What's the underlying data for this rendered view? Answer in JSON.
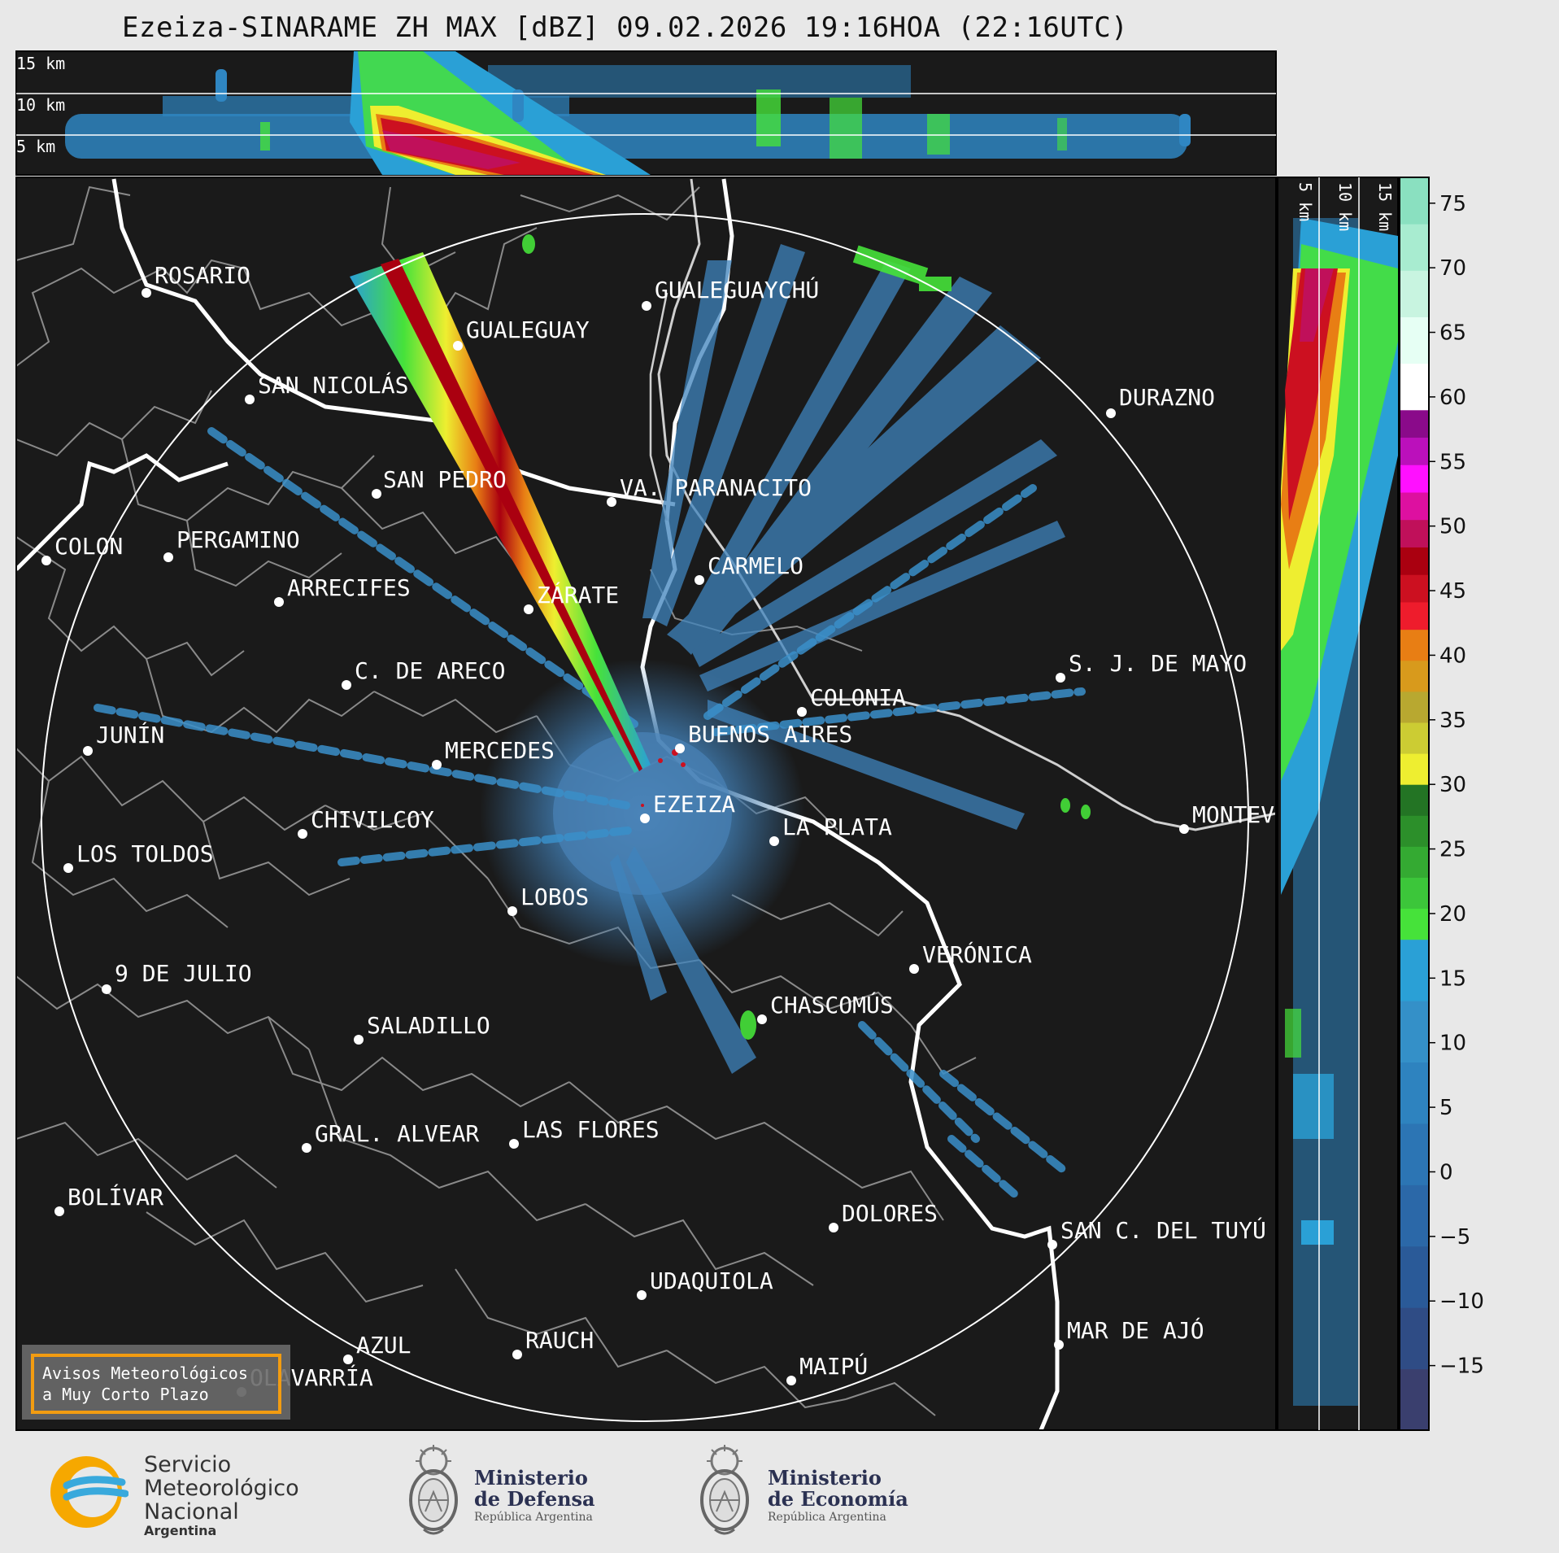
{
  "title": "Ezeiza-SINARAME ZH MAX [dBZ] 09.02.2026 19:16HOA (22:16UTC)",
  "top_panel": {
    "labels": [
      "15 km",
      "10 km",
      "5 km"
    ]
  },
  "side_panel": {
    "labels": [
      "5 km",
      "10 km",
      "15 km"
    ]
  },
  "colorbar": {
    "ticks": [
      "75",
      "70",
      "65",
      "60",
      "55",
      "50",
      "45",
      "40",
      "35",
      "30",
      "25",
      "20",
      "15",
      "10",
      "5",
      "0",
      "−5",
      "−10",
      "−15"
    ],
    "range": [
      -20,
      77
    ],
    "unit": "dBZ",
    "bands": [
      {
        "from": -20,
        "to": 18,
        "colors": [
          "#3a3f6e",
          "#2f4c85",
          "#2a5a98",
          "#2b68a8",
          "#2c75b4",
          "#2e83bf",
          "#3490c8",
          "#2aa0d6"
        ]
      },
      {
        "from": 18,
        "to": 30,
        "colors": [
          "#46e23a",
          "#3cc63a",
          "#34aa32",
          "#2c8f2a",
          "#237424"
        ]
      },
      {
        "from": 30,
        "to": 42,
        "colors": [
          "#eeee30",
          "#cccc33",
          "#b8a830",
          "#d89a1c",
          "#e87e14"
        ]
      },
      {
        "from": 42,
        "to": 59,
        "colors": [
          "#ee1c2c",
          "#cc1020",
          "#aa0010",
          "#c0105a",
          "#dd10a0",
          "#ff10ff",
          "#bb10bb",
          "#8a0a8a"
        ]
      },
      {
        "from": 59,
        "to": 77,
        "colors": [
          "#ffffff",
          "#e6fff4",
          "#c8f4e0",
          "#a8ecd0",
          "#8ae0c0"
        ]
      }
    ]
  },
  "map": {
    "range_ring_km": 240,
    "cities": [
      {
        "name": "ROSARIO"
      },
      {
        "name": "GUALEGUAYCHÚ"
      },
      {
        "name": "GUALEGUAY"
      },
      {
        "name": "SAN NICOLÁS"
      },
      {
        "name": "DURAZNO"
      },
      {
        "name": "SAN PEDRO"
      },
      {
        "name": "VA. PARANACITO"
      },
      {
        "name": "COLON"
      },
      {
        "name": "PERGAMINO"
      },
      {
        "name": "CARMELO"
      },
      {
        "name": "ARRECIFES"
      },
      {
        "name": "ZÁRATE"
      },
      {
        "name": "S. J. DE MAYO"
      },
      {
        "name": "C. DE ARECO"
      },
      {
        "name": "COLONIA"
      },
      {
        "name": "JUNÍN"
      },
      {
        "name": "BUENOS AIRES"
      },
      {
        "name": "MERCEDES"
      },
      {
        "name": "EZEIZA"
      },
      {
        "name": "MONTEV"
      },
      {
        "name": "CHIVILCOY"
      },
      {
        "name": "LA PLATA"
      },
      {
        "name": "LOS TOLDOS"
      },
      {
        "name": "LOBOS"
      },
      {
        "name": "VERÓNICA"
      },
      {
        "name": "9 DE JULIO"
      },
      {
        "name": "CHASCOMÚS"
      },
      {
        "name": "SALADILLO"
      },
      {
        "name": "GRAL. ALVEAR"
      },
      {
        "name": "LAS FLORES"
      },
      {
        "name": "BOLÍVAR"
      },
      {
        "name": "DOLORES"
      },
      {
        "name": "SAN C. DEL TUYÚ"
      },
      {
        "name": "UDAQUIOLA"
      },
      {
        "name": "MAR DE AJÓ"
      },
      {
        "name": "AZUL"
      },
      {
        "name": "RAUCH"
      },
      {
        "name": "MAIPÚ"
      },
      {
        "name": "OLAVARRÍA"
      }
    ]
  },
  "warning_box": {
    "line1": "Avisos Meteorológicos",
    "line2": "a Muy Corto Plazo"
  },
  "footer": {
    "smn": {
      "line1": "Servicio",
      "line2": "Meteorológico",
      "line3": "Nacional",
      "line4": "Argentina"
    },
    "defensa": {
      "line1": "Ministerio",
      "line2": "de Defensa",
      "line3": "República Argentina"
    },
    "economia": {
      "line1": "Ministerio",
      "line2": "de Economía",
      "line3": "República Argentina"
    }
  },
  "colors": {
    "background": "#1a1a1a",
    "page": "#e8e8e8",
    "coast": "#ffffff",
    "borders": "#8a8a8a",
    "warning_border": "#f29c11"
  }
}
